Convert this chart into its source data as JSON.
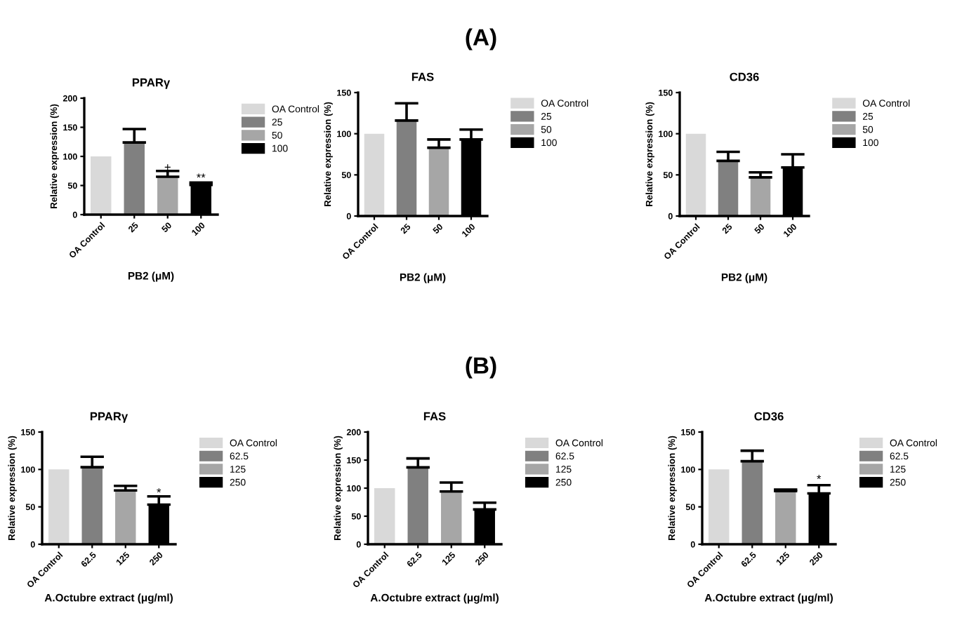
{
  "chart_data": [
    {
      "type": "bar",
      "title": "PPARγ",
      "xlabel": "PB2 (μM)",
      "ylabel": "Relative expression (%)",
      "categories": [
        "OA Control",
        "25",
        "50",
        "100"
      ],
      "series": [
        {
          "name": "OA Control",
          "color": "#d9d9d9",
          "values": [
            100,
            null,
            null,
            null
          ],
          "errors": [
            null,
            null,
            null,
            null
          ]
        },
        {
          "name": "25",
          "color": "#808080",
          "values": [
            null,
            124,
            null,
            null
          ],
          "errors": [
            null,
            23,
            null,
            null
          ]
        },
        {
          "name": "50",
          "color": "#a6a6a6",
          "values": [
            null,
            null,
            65,
            null
          ],
          "errors": [
            null,
            null,
            10,
            null
          ]
        },
        {
          "name": "100",
          "color": "#000000",
          "values": [
            null,
            null,
            null,
            51
          ],
          "errors": [
            null,
            null,
            null,
            4
          ]
        }
      ],
      "ylim": [
        0,
        200
      ],
      "yticks": [
        0,
        50,
        100,
        150,
        200
      ],
      "legend": "right",
      "annotations": [
        "(A)",
        {
          "text": "+",
          "x": "50",
          "y": 80
        },
        {
          "text": "**",
          "x": "100",
          "y": 62
        }
      ]
    },
    {
      "type": "bar",
      "title": "FAS",
      "xlabel": "PB2 (μM)",
      "ylabel": "Relative expression (%)",
      "categories": [
        "OA Control",
        "25",
        "50",
        "100"
      ],
      "series": [
        {
          "name": "OA Control",
          "color": "#d9d9d9",
          "values": [
            100,
            null,
            null,
            null
          ],
          "errors": [
            null,
            null,
            null,
            null
          ]
        },
        {
          "name": "25",
          "color": "#808080",
          "values": [
            null,
            116,
            null,
            null
          ],
          "errors": [
            null,
            21,
            null,
            null
          ]
        },
        {
          "name": "50",
          "color": "#a6a6a6",
          "values": [
            null,
            null,
            83,
            null
          ],
          "errors": [
            null,
            null,
            10,
            null
          ]
        },
        {
          "name": "100",
          "color": "#000000",
          "values": [
            null,
            null,
            null,
            93
          ],
          "errors": [
            null,
            null,
            null,
            12
          ]
        }
      ],
      "ylim": [
        0,
        150
      ],
      "yticks": [
        0,
        50,
        100,
        150
      ],
      "legend": "right"
    },
    {
      "type": "bar",
      "title": "CD36",
      "xlabel": "PB2 (μM)",
      "ylabel": "Relative expression (%)",
      "categories": [
        "OA Control",
        "25",
        "50",
        "100"
      ],
      "series": [
        {
          "name": "OA Control",
          "color": "#d9d9d9",
          "values": [
            100,
            null,
            null,
            null
          ],
          "errors": [
            null,
            null,
            null,
            null
          ]
        },
        {
          "name": "25",
          "color": "#808080",
          "values": [
            null,
            67,
            null,
            null
          ],
          "errors": [
            null,
            11,
            null,
            null
          ]
        },
        {
          "name": "50",
          "color": "#a6a6a6",
          "values": [
            null,
            null,
            47,
            null
          ],
          "errors": [
            null,
            null,
            6,
            null
          ]
        },
        {
          "name": "100",
          "color": "#000000",
          "values": [
            null,
            null,
            null,
            59
          ],
          "errors": [
            null,
            null,
            null,
            16
          ]
        }
      ],
      "ylim": [
        0,
        150
      ],
      "yticks": [
        0,
        50,
        100,
        150
      ],
      "legend": "right"
    },
    {
      "type": "bar",
      "title": "PPARγ",
      "xlabel": "A.Octubre extract (μg/ml)",
      "ylabel": "Relative expression (%)",
      "categories": [
        "OA Control",
        "62.5",
        "125",
        "250"
      ],
      "series": [
        {
          "name": "OA Control",
          "color": "#d9d9d9",
          "values": [
            100,
            null,
            null,
            null
          ],
          "errors": [
            null,
            null,
            null,
            null
          ]
        },
        {
          "name": "62.5",
          "color": "#808080",
          "values": [
            null,
            103,
            null,
            null
          ],
          "errors": [
            null,
            14,
            null,
            null
          ]
        },
        {
          "name": "125",
          "color": "#a6a6a6",
          "values": [
            null,
            null,
            72,
            null
          ],
          "errors": [
            null,
            null,
            6,
            null
          ]
        },
        {
          "name": "250",
          "color": "#000000",
          "values": [
            null,
            null,
            null,
            53
          ],
          "errors": [
            null,
            null,
            null,
            11
          ]
        }
      ],
      "ylim": [
        0,
        150
      ],
      "yticks": [
        0,
        50,
        100,
        150
      ],
      "legend": "right",
      "annotations": [
        "(B)",
        {
          "text": "*",
          "x": "250",
          "y": 68
        }
      ]
    },
    {
      "type": "bar",
      "title": "FAS",
      "xlabel": "A.Octubre extract (μg/ml)",
      "ylabel": "Relative expression (%)",
      "categories": [
        "OA Control",
        "62.5",
        "125",
        "250"
      ],
      "series": [
        {
          "name": "OA Control",
          "color": "#d9d9d9",
          "values": [
            100,
            null,
            null,
            null
          ],
          "errors": [
            null,
            null,
            null,
            null
          ]
        },
        {
          "name": "62.5",
          "color": "#808080",
          "values": [
            null,
            137,
            null,
            null
          ],
          "errors": [
            null,
            16,
            null,
            null
          ]
        },
        {
          "name": "125",
          "color": "#a6a6a6",
          "values": [
            null,
            null,
            94,
            null
          ],
          "errors": [
            null,
            null,
            16,
            null
          ]
        },
        {
          "name": "250",
          "color": "#000000",
          "values": [
            null,
            null,
            null,
            62
          ],
          "errors": [
            null,
            null,
            null,
            12
          ]
        }
      ],
      "ylim": [
        0,
        200
      ],
      "yticks": [
        0,
        50,
        100,
        150,
        200
      ],
      "legend": "right"
    },
    {
      "type": "bar",
      "title": "CD36",
      "xlabel": "A.Octubre extract (μg/ml)",
      "ylabel": "Relative expression (%)",
      "categories": [
        "OA Control",
        "62.5",
        "125",
        "250"
      ],
      "series": [
        {
          "name": "OA Control",
          "color": "#d9d9d9",
          "values": [
            100,
            null,
            null,
            null
          ],
          "errors": [
            null,
            null,
            null,
            null
          ]
        },
        {
          "name": "62.5",
          "color": "#808080",
          "values": [
            null,
            111,
            null,
            null
          ],
          "errors": [
            null,
            14,
            null,
            null
          ]
        },
        {
          "name": "125",
          "color": "#a6a6a6",
          "values": [
            null,
            null,
            71,
            null
          ],
          "errors": [
            null,
            null,
            2,
            null
          ]
        },
        {
          "name": "250",
          "color": "#000000",
          "values": [
            null,
            null,
            null,
            68
          ],
          "errors": [
            null,
            null,
            null,
            11
          ]
        }
      ],
      "ylim": [
        0,
        150
      ],
      "yticks": [
        0,
        50,
        100,
        150
      ],
      "legend": "right",
      "annotations": [
        {
          "text": "*",
          "x": "250",
          "y": 86
        }
      ]
    }
  ]
}
